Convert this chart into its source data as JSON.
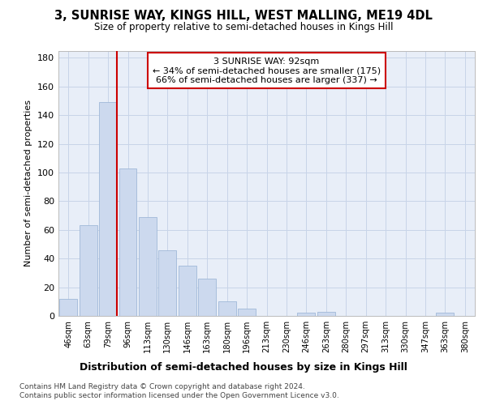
{
  "title": "3, SUNRISE WAY, KINGS HILL, WEST MALLING, ME19 4DL",
  "subtitle": "Size of property relative to semi-detached houses in Kings Hill",
  "xlabel": "Distribution of semi-detached houses by size in Kings Hill",
  "ylabel": "Number of semi-detached properties",
  "categories": [
    "46sqm",
    "63sqm",
    "79sqm",
    "96sqm",
    "113sqm",
    "130sqm",
    "146sqm",
    "163sqm",
    "180sqm",
    "196sqm",
    "213sqm",
    "230sqm",
    "246sqm",
    "263sqm",
    "280sqm",
    "297sqm",
    "313sqm",
    "330sqm",
    "347sqm",
    "363sqm",
    "380sqm"
  ],
  "values": [
    12,
    63,
    149,
    103,
    69,
    46,
    35,
    26,
    10,
    5,
    0,
    0,
    2,
    3,
    0,
    0,
    0,
    0,
    0,
    2,
    0
  ],
  "bar_color": "#ccd9ee",
  "bar_edge_color": "#a0b8d8",
  "grid_color": "#c8d4e8",
  "background_color": "#e8eef8",
  "vline_color": "#cc0000",
  "annotation_title": "3 SUNRISE WAY: 92sqm",
  "annotation_line1": "← 34% of semi-detached houses are smaller (175)",
  "annotation_line2": "66% of semi-detached houses are larger (337) →",
  "annotation_box_color": "#ffffff",
  "annotation_box_edge": "#cc0000",
  "ylim": [
    0,
    185
  ],
  "yticks": [
    0,
    20,
    40,
    60,
    80,
    100,
    120,
    140,
    160,
    180
  ],
  "footer_line1": "Contains HM Land Registry data © Crown copyright and database right 2024.",
  "footer_line2": "Contains public sector information licensed under the Open Government Licence v3.0."
}
